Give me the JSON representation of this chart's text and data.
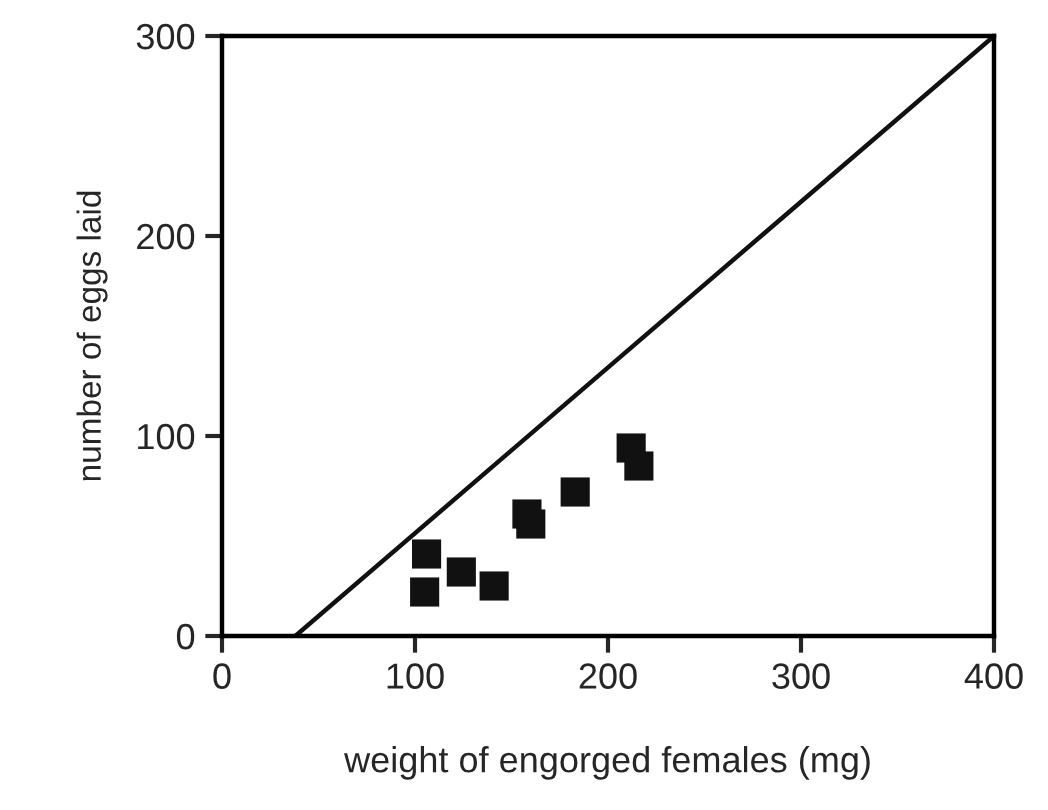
{
  "chart_data": {
    "type": "scatter",
    "xlabel": "weight of engorged females (mg)",
    "ylabel": "number of eggs laid",
    "xlim": [
      0,
      400
    ],
    "ylim": [
      0,
      300
    ],
    "xticks": [
      0,
      100,
      200,
      300,
      400
    ],
    "yticks": [
      0,
      100,
      200,
      300
    ],
    "grid": false,
    "series": [
      {
        "color": "#111111",
        "marker": "square",
        "x": [
          106,
          105,
          124,
          141,
          158,
          160,
          183,
          212,
          216
        ],
        "values": [
          41,
          22,
          32,
          25,
          61,
          56,
          72,
          94,
          85
        ]
      },
      {
        "type": "line",
        "color": "#111111",
        "marker": "none",
        "x": [
          38,
          400
        ],
        "values": [
          0,
          300
        ],
        "line_style": "solid"
      }
    ]
  }
}
